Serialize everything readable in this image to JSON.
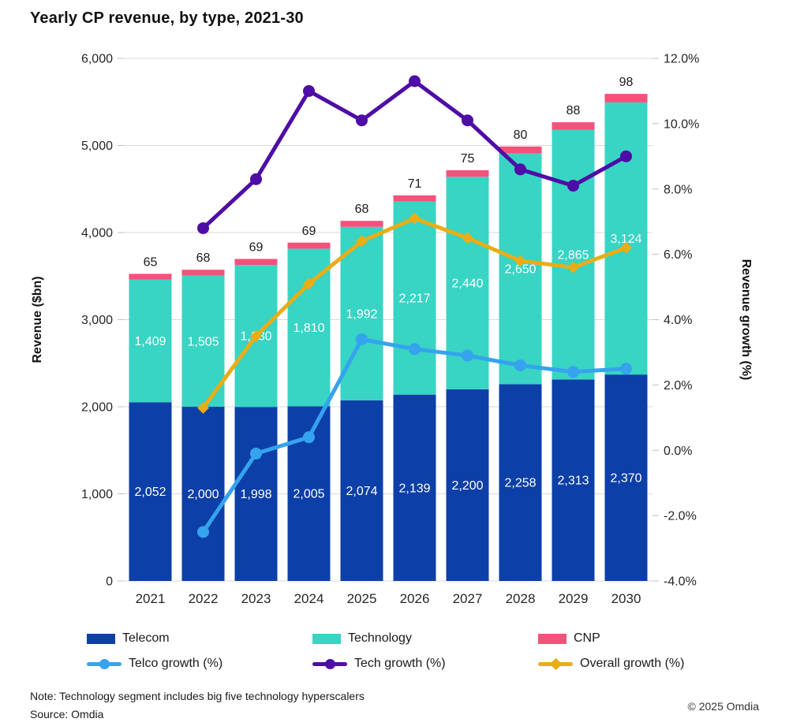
{
  "title": "Yearly CP revenue, by type, 2021-30",
  "chart_data": {
    "type": "bar",
    "subtype": "stacked-bar-with-lines",
    "categories": [
      "2021",
      "2022",
      "2023",
      "2024",
      "2025",
      "2026",
      "2027",
      "2028",
      "2029",
      "2030"
    ],
    "bar_series": [
      {
        "name": "Telecom",
        "color": "#0D3FA8",
        "label_color": "#ffffff",
        "label_position": "inside",
        "values": [
          2052,
          2000,
          1998,
          2005,
          2074,
          2139,
          2200,
          2258,
          2313,
          2370
        ]
      },
      {
        "name": "Technology",
        "color": "#38D4C4",
        "label_color": "#ffffff",
        "label_position": "inside",
        "values": [
          1409,
          1505,
          1630,
          1810,
          1992,
          2217,
          2440,
          2650,
          2865,
          3124
        ]
      },
      {
        "name": "CNP",
        "color": "#F4517B",
        "label_color": "#1a1a1a",
        "label_position": "above",
        "values": [
          65,
          68,
          69,
          69,
          68,
          71,
          75,
          80,
          88,
          98
        ]
      }
    ],
    "line_series": [
      {
        "name": "Telco growth (%)",
        "color": "#35A3ED",
        "marker": "circle",
        "values": [
          null,
          -2.5,
          -0.1,
          0.4,
          3.4,
          3.1,
          2.9,
          2.6,
          2.4,
          2.5
        ]
      },
      {
        "name": "Tech growth (%)",
        "color": "#4E0DA6",
        "marker": "circle",
        "values": [
          null,
          6.8,
          8.3,
          11.0,
          10.1,
          11.3,
          10.1,
          8.6,
          8.1,
          9.0
        ]
      },
      {
        "name": "Overall growth (%)",
        "color": "#E9AD18",
        "marker": "diamond",
        "values": [
          null,
          1.3,
          3.5,
          5.1,
          6.4,
          7.1,
          6.5,
          5.8,
          5.6,
          6.2
        ]
      }
    ],
    "y_left": {
      "label": "Revenue ($bn)",
      "min": 0,
      "max": 6000,
      "ticks": [
        "6,000",
        "5,000",
        "4,000",
        "3,000",
        "2,000",
        "1,000",
        "0"
      ]
    },
    "y_right": {
      "label": "Revenue growth (%)",
      "min": -4,
      "max": 12,
      "ticks": [
        "12.0%",
        "10.0%",
        "8.0%",
        "6.0%",
        "4.0%",
        "2.0%",
        "0.0%",
        "-2.0%",
        "-4.0%"
      ]
    },
    "grid": "horizontal",
    "legend_position": "bottom"
  },
  "legend": {
    "items": [
      {
        "label": "Telecom",
        "color": "#0D3FA8"
      },
      {
        "label": "Technology",
        "color": "#38D4C4"
      },
      {
        "label": "CNP",
        "color": "#F4517B"
      },
      {
        "label": "Telco growth (%)",
        "color": "#35A3ED"
      },
      {
        "label": "Tech growth (%)",
        "color": "#4E0DA6"
      },
      {
        "label": "Overall growth (%)",
        "color": "#E9AD18"
      }
    ]
  },
  "footer": {
    "note": "Note: Technology segment includes big five technology hyperscalers",
    "source": "Source: Omdia",
    "copyright": "© 2025 Omdia"
  }
}
